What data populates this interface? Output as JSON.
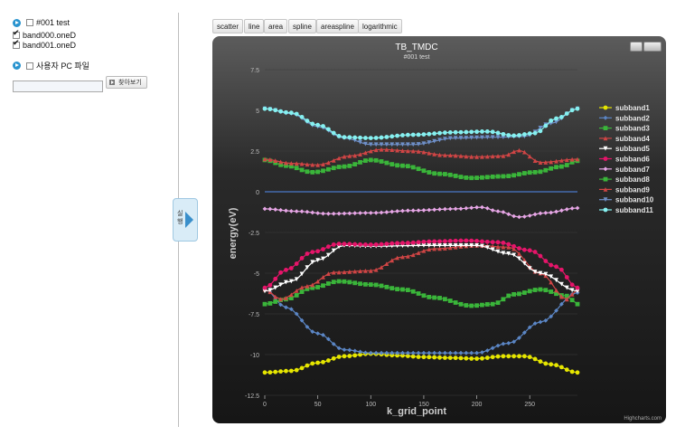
{
  "left_panel": {
    "items": [
      {
        "label": "#001 test",
        "checked": false
      },
      {
        "label": "band000.oneD",
        "checked": true
      },
      {
        "label": "band001.oneD",
        "checked": true
      }
    ],
    "pc_file_label": "사용자 PC 파일",
    "browse_label": "찾아보기",
    "run_label": "실행"
  },
  "toolbar": {
    "buttons": [
      "scatter",
      "line",
      "area",
      "spline",
      "areaspline",
      "logarithmic"
    ]
  },
  "chart_data": {
    "type": "line",
    "title": "TB_TMDC",
    "subtitle": "#001 test",
    "xlabel": "k_grid_point",
    "ylabel": "energy(eV)",
    "xlim": [
      0,
      295
    ],
    "ylim": [
      -12.5,
      7.5
    ],
    "x_ticks": [
      0,
      50,
      100,
      150,
      200,
      250
    ],
    "y_ticks": [
      7.5,
      5,
      2.5,
      0,
      -2.5,
      -5,
      -7.5,
      -10,
      -12.5
    ],
    "zero_line": 0,
    "credits": "Highcharts.com",
    "legend_position": "right",
    "series": [
      {
        "name": "subband1",
        "color": "#e6e600",
        "marker": "circle",
        "points": [
          [
            0,
            -11.1
          ],
          [
            25,
            -11
          ],
          [
            50,
            -10.5
          ],
          [
            75,
            -10.1
          ],
          [
            100,
            -9.95
          ],
          [
            125,
            -10.05
          ],
          [
            150,
            -10.15
          ],
          [
            175,
            -10.2
          ],
          [
            200,
            -10.25
          ],
          [
            225,
            -10.1
          ],
          [
            245,
            -10.1
          ],
          [
            270,
            -10.6
          ],
          [
            295,
            -11.1
          ]
        ]
      },
      {
        "name": "subband2",
        "color": "#5b86c5",
        "marker": "diamond",
        "points": [
          [
            0,
            -6.0
          ],
          [
            20,
            -7.1
          ],
          [
            50,
            -8.7
          ],
          [
            75,
            -9.7
          ],
          [
            100,
            -9.9
          ],
          [
            150,
            -9.9
          ],
          [
            200,
            -9.9
          ],
          [
            230,
            -9.3
          ],
          [
            260,
            -8.0
          ],
          [
            295,
            -6.2
          ]
        ]
      },
      {
        "name": "subband3",
        "color": "#3ab53a",
        "marker": "square",
        "points": [
          [
            0,
            -6.9
          ],
          [
            20,
            -6.6
          ],
          [
            45,
            -5.9
          ],
          [
            70,
            -5.5
          ],
          [
            100,
            -5.7
          ],
          [
            130,
            -6.0
          ],
          [
            160,
            -6.5
          ],
          [
            195,
            -7.0
          ],
          [
            215,
            -6.9
          ],
          [
            235,
            -6.3
          ],
          [
            260,
            -6.0
          ],
          [
            285,
            -6.4
          ],
          [
            295,
            -6.9
          ]
        ]
      },
      {
        "name": "subband4",
        "color": "#d04545",
        "marker": "triangle",
        "points": [
          [
            0,
            -6.0
          ],
          [
            15,
            -6.6
          ],
          [
            40,
            -5.8
          ],
          [
            65,
            -4.95
          ],
          [
            100,
            -4.85
          ],
          [
            130,
            -4.0
          ],
          [
            160,
            -3.5
          ],
          [
            200,
            -3.3
          ],
          [
            230,
            -3.4
          ],
          [
            260,
            -5.0
          ],
          [
            285,
            -6.6
          ],
          [
            295,
            -6.0
          ]
        ]
      },
      {
        "name": "subband5",
        "color": "#ffffff",
        "marker": "triangle-down",
        "points": [
          [
            0,
            -6.1
          ],
          [
            25,
            -5.5
          ],
          [
            50,
            -4.2
          ],
          [
            75,
            -3.3
          ],
          [
            100,
            -3.35
          ],
          [
            150,
            -3.3
          ],
          [
            200,
            -3.3
          ],
          [
            230,
            -3.8
          ],
          [
            260,
            -5.0
          ],
          [
            295,
            -6.1
          ]
        ]
      },
      {
        "name": "subband6",
        "color": "#e6156a",
        "marker": "circle",
        "points": [
          [
            0,
            -5.9
          ],
          [
            20,
            -4.8
          ],
          [
            45,
            -3.7
          ],
          [
            70,
            -3.2
          ],
          [
            100,
            -3.25
          ],
          [
            130,
            -3.15
          ],
          [
            160,
            -3.05
          ],
          [
            190,
            -3.0
          ],
          [
            220,
            -3.1
          ],
          [
            250,
            -3.6
          ],
          [
            275,
            -4.6
          ],
          [
            295,
            -5.9
          ]
        ]
      },
      {
        "name": "subband7",
        "color": "#e7a6e6",
        "marker": "diamond",
        "points": [
          [
            0,
            -1.05
          ],
          [
            30,
            -1.2
          ],
          [
            60,
            -1.35
          ],
          [
            100,
            -1.3
          ],
          [
            140,
            -1.15
          ],
          [
            180,
            -1.05
          ],
          [
            205,
            -0.95
          ],
          [
            220,
            -1.2
          ],
          [
            240,
            -1.55
          ],
          [
            265,
            -1.3
          ],
          [
            295,
            -1.0
          ]
        ]
      },
      {
        "name": "subband8",
        "color": "#3ab53a",
        "marker": "square",
        "points": [
          [
            0,
            1.95
          ],
          [
            20,
            1.6
          ],
          [
            45,
            1.2
          ],
          [
            75,
            1.55
          ],
          [
            100,
            1.95
          ],
          [
            130,
            1.6
          ],
          [
            165,
            1.1
          ],
          [
            195,
            0.85
          ],
          [
            225,
            0.95
          ],
          [
            255,
            1.2
          ],
          [
            280,
            1.55
          ],
          [
            295,
            1.9
          ]
        ]
      },
      {
        "name": "subband9",
        "color": "#d04545",
        "marker": "triangle",
        "points": [
          [
            0,
            2.0
          ],
          [
            25,
            1.75
          ],
          [
            50,
            1.65
          ],
          [
            80,
            2.2
          ],
          [
            110,
            2.6
          ],
          [
            140,
            2.5
          ],
          [
            170,
            2.25
          ],
          [
            200,
            2.15
          ],
          [
            225,
            2.2
          ],
          [
            240,
            2.55
          ],
          [
            260,
            1.8
          ],
          [
            295,
            2.0
          ]
        ]
      },
      {
        "name": "subband10",
        "color": "#6e8fc8",
        "marker": "triangle-down",
        "points": [
          [
            0,
            5.1
          ],
          [
            25,
            4.8
          ],
          [
            50,
            4.0
          ],
          [
            75,
            3.3
          ],
          [
            100,
            2.9
          ],
          [
            140,
            2.9
          ],
          [
            180,
            3.3
          ],
          [
            220,
            3.35
          ],
          [
            245,
            3.4
          ],
          [
            270,
            4.2
          ],
          [
            295,
            5.1
          ]
        ]
      },
      {
        "name": "subband11",
        "color": "#86f0f0",
        "marker": "circle",
        "points": [
          [
            0,
            5.1
          ],
          [
            25,
            4.85
          ],
          [
            50,
            4.1
          ],
          [
            75,
            3.35
          ],
          [
            100,
            3.3
          ],
          [
            140,
            3.5
          ],
          [
            180,
            3.65
          ],
          [
            210,
            3.7
          ],
          [
            235,
            3.45
          ],
          [
            255,
            3.6
          ],
          [
            275,
            4.5
          ],
          [
            295,
            5.1
          ]
        ]
      }
    ]
  }
}
